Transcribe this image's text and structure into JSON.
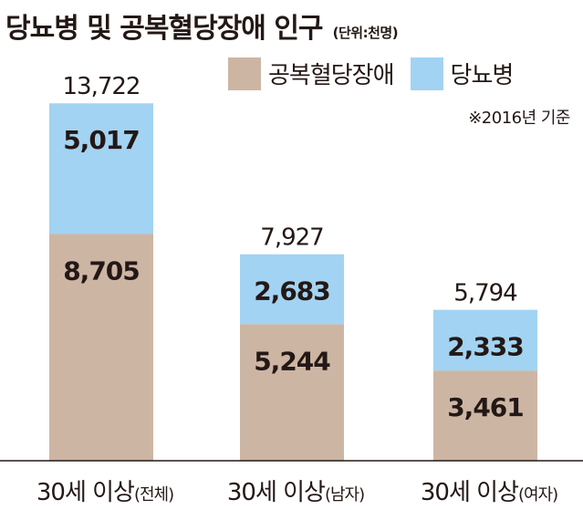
{
  "title": "당뇨병 및 공복혈당장애 인구",
  "unit": "(단위:천명)",
  "note": "※2016년 기준",
  "colors": {
    "impaired_fasting": "#cdb5a4",
    "diabetes": "#a2d3f2",
    "text": "#231815",
    "axis": "#231815"
  },
  "chart_data": {
    "type": "bar",
    "stacked": true,
    "categories": [
      {
        "main": "30세 이상",
        "sub": "(전체)"
      },
      {
        "main": "30세 이상",
        "sub": "(남자)"
      },
      {
        "main": "30세 이상",
        "sub": "(여자)"
      }
    ],
    "series": [
      {
        "name": "공복혈당장애",
        "color": "#cdb5a4",
        "values": [
          8705,
          5244,
          3461
        ],
        "labels": [
          "8,705",
          "5,244",
          "3,461"
        ]
      },
      {
        "name": "당뇨병",
        "color": "#a2d3f2",
        "values": [
          5017,
          2683,
          2333
        ],
        "labels": [
          "5,017",
          "2,683",
          "2,333"
        ]
      }
    ],
    "totals": [
      13722,
      7927,
      5794
    ],
    "total_labels": [
      "13,722",
      "7,927",
      "5,794"
    ],
    "legend_position": "top-right",
    "grid": false
  }
}
